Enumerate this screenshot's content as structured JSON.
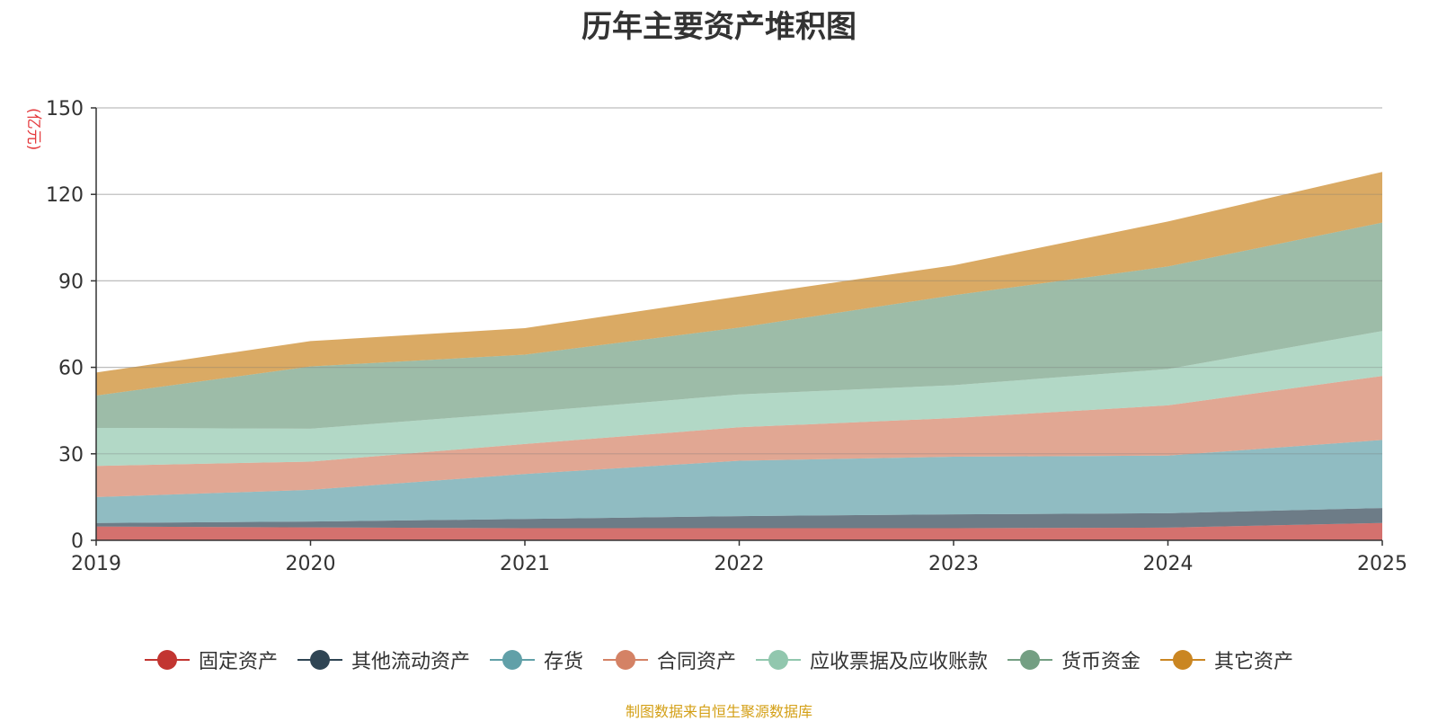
{
  "chart_data": {
    "type": "area",
    "stacked": true,
    "title": "历年主要资产堆积图",
    "ylabel": "(亿元)",
    "xlabel": "",
    "x": [
      "2019",
      "2020",
      "2021",
      "2022",
      "2023",
      "2024",
      "2025"
    ],
    "ylim": [
      0,
      150
    ],
    "yticks": [
      0,
      30,
      60,
      90,
      120,
      150
    ],
    "grid": true,
    "legend_position": "bottom",
    "series": [
      {
        "name": "固定资产",
        "color": "#c23531",
        "values": [
          4.8,
          4.5,
          4.2,
          4.2,
          4.2,
          4.4,
          6.0
        ]
      },
      {
        "name": "其他流动资产",
        "color": "#2f4554",
        "values": [
          1.2,
          2.0,
          3.2,
          4.2,
          4.8,
          5.0,
          5.2
        ]
      },
      {
        "name": "存货",
        "color": "#61a0a8",
        "values": [
          9.0,
          11.0,
          15.6,
          19.2,
          20.0,
          20.0,
          23.6
        ]
      },
      {
        "name": "合同资产",
        "color": "#d48265",
        "values": [
          10.8,
          9.8,
          10.4,
          11.6,
          13.4,
          17.4,
          22.2
        ]
      },
      {
        "name": "应收票据及应收账款",
        "color": "#91c7ae",
        "values": [
          13.2,
          11.4,
          11.0,
          11.4,
          11.4,
          12.6,
          15.6
        ]
      },
      {
        "name": "货币资金",
        "color": "#749f83",
        "values": [
          11.2,
          21.6,
          20.0,
          23.2,
          31.2,
          35.6,
          37.6
        ]
      },
      {
        "name": "其它资产",
        "color": "#ca8622",
        "values": [
          8.0,
          8.8,
          9.2,
          10.8,
          10.4,
          15.6,
          17.6
        ]
      }
    ]
  },
  "footer": {
    "source": "制图数据来自恒生聚源数据库"
  }
}
